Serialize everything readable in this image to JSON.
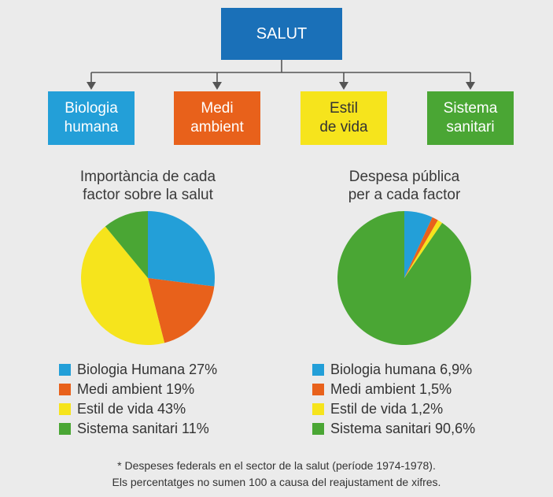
{
  "header": {
    "title": "SALUT"
  },
  "factors": [
    {
      "label": "Biologia\nhumana",
      "bg": "#239fd8",
      "fg": "#ffffff"
    },
    {
      "label": "Medi\nambient",
      "bg": "#e8611b",
      "fg": "#ffffff"
    },
    {
      "label": "Estil\nde vida",
      "bg": "#f6e41c",
      "fg": "#333333"
    },
    {
      "label": "Sistema\nsanitari",
      "bg": "#4aa634",
      "fg": "#ffffff"
    }
  ],
  "chart_data": [
    {
      "type": "pie",
      "title": "Importància de cada\nfactor sobre la salut",
      "categories": [
        "Biologia Humana",
        "Medi ambient",
        "Estil de vida",
        "Sistema sanitari"
      ],
      "values": [
        27,
        19,
        43,
        11
      ],
      "colors": [
        "#239fd8",
        "#e8611b",
        "#f6e41c",
        "#4aa634"
      ],
      "legend": [
        "Biologia Humana 27%",
        "Medi ambient 19%",
        "Estil de vida 43%",
        "Sistema sanitari 11%"
      ],
      "legend_position": "bottom"
    },
    {
      "type": "pie",
      "title": "Despesa pública\nper a cada factor",
      "categories": [
        "Biologia humana",
        "Medi ambient",
        "Estil de vida",
        "Sistema sanitari"
      ],
      "values": [
        6.9,
        1.5,
        1.2,
        90.6
      ],
      "colors": [
        "#239fd8",
        "#e8611b",
        "#f6e41c",
        "#4aa634"
      ],
      "legend": [
        "Biologia humana 6,9%",
        "Medi ambient 1,5%",
        "Estil de vida 1,2%",
        "Sistema sanitari 90,6%"
      ],
      "legend_position": "bottom"
    }
  ],
  "footnote": {
    "line1": "* Despeses federals en el sector de la salut (període 1974-1978).",
    "line2": "Els percentatges no sumen 100 a causa del reajustament de xifres."
  }
}
